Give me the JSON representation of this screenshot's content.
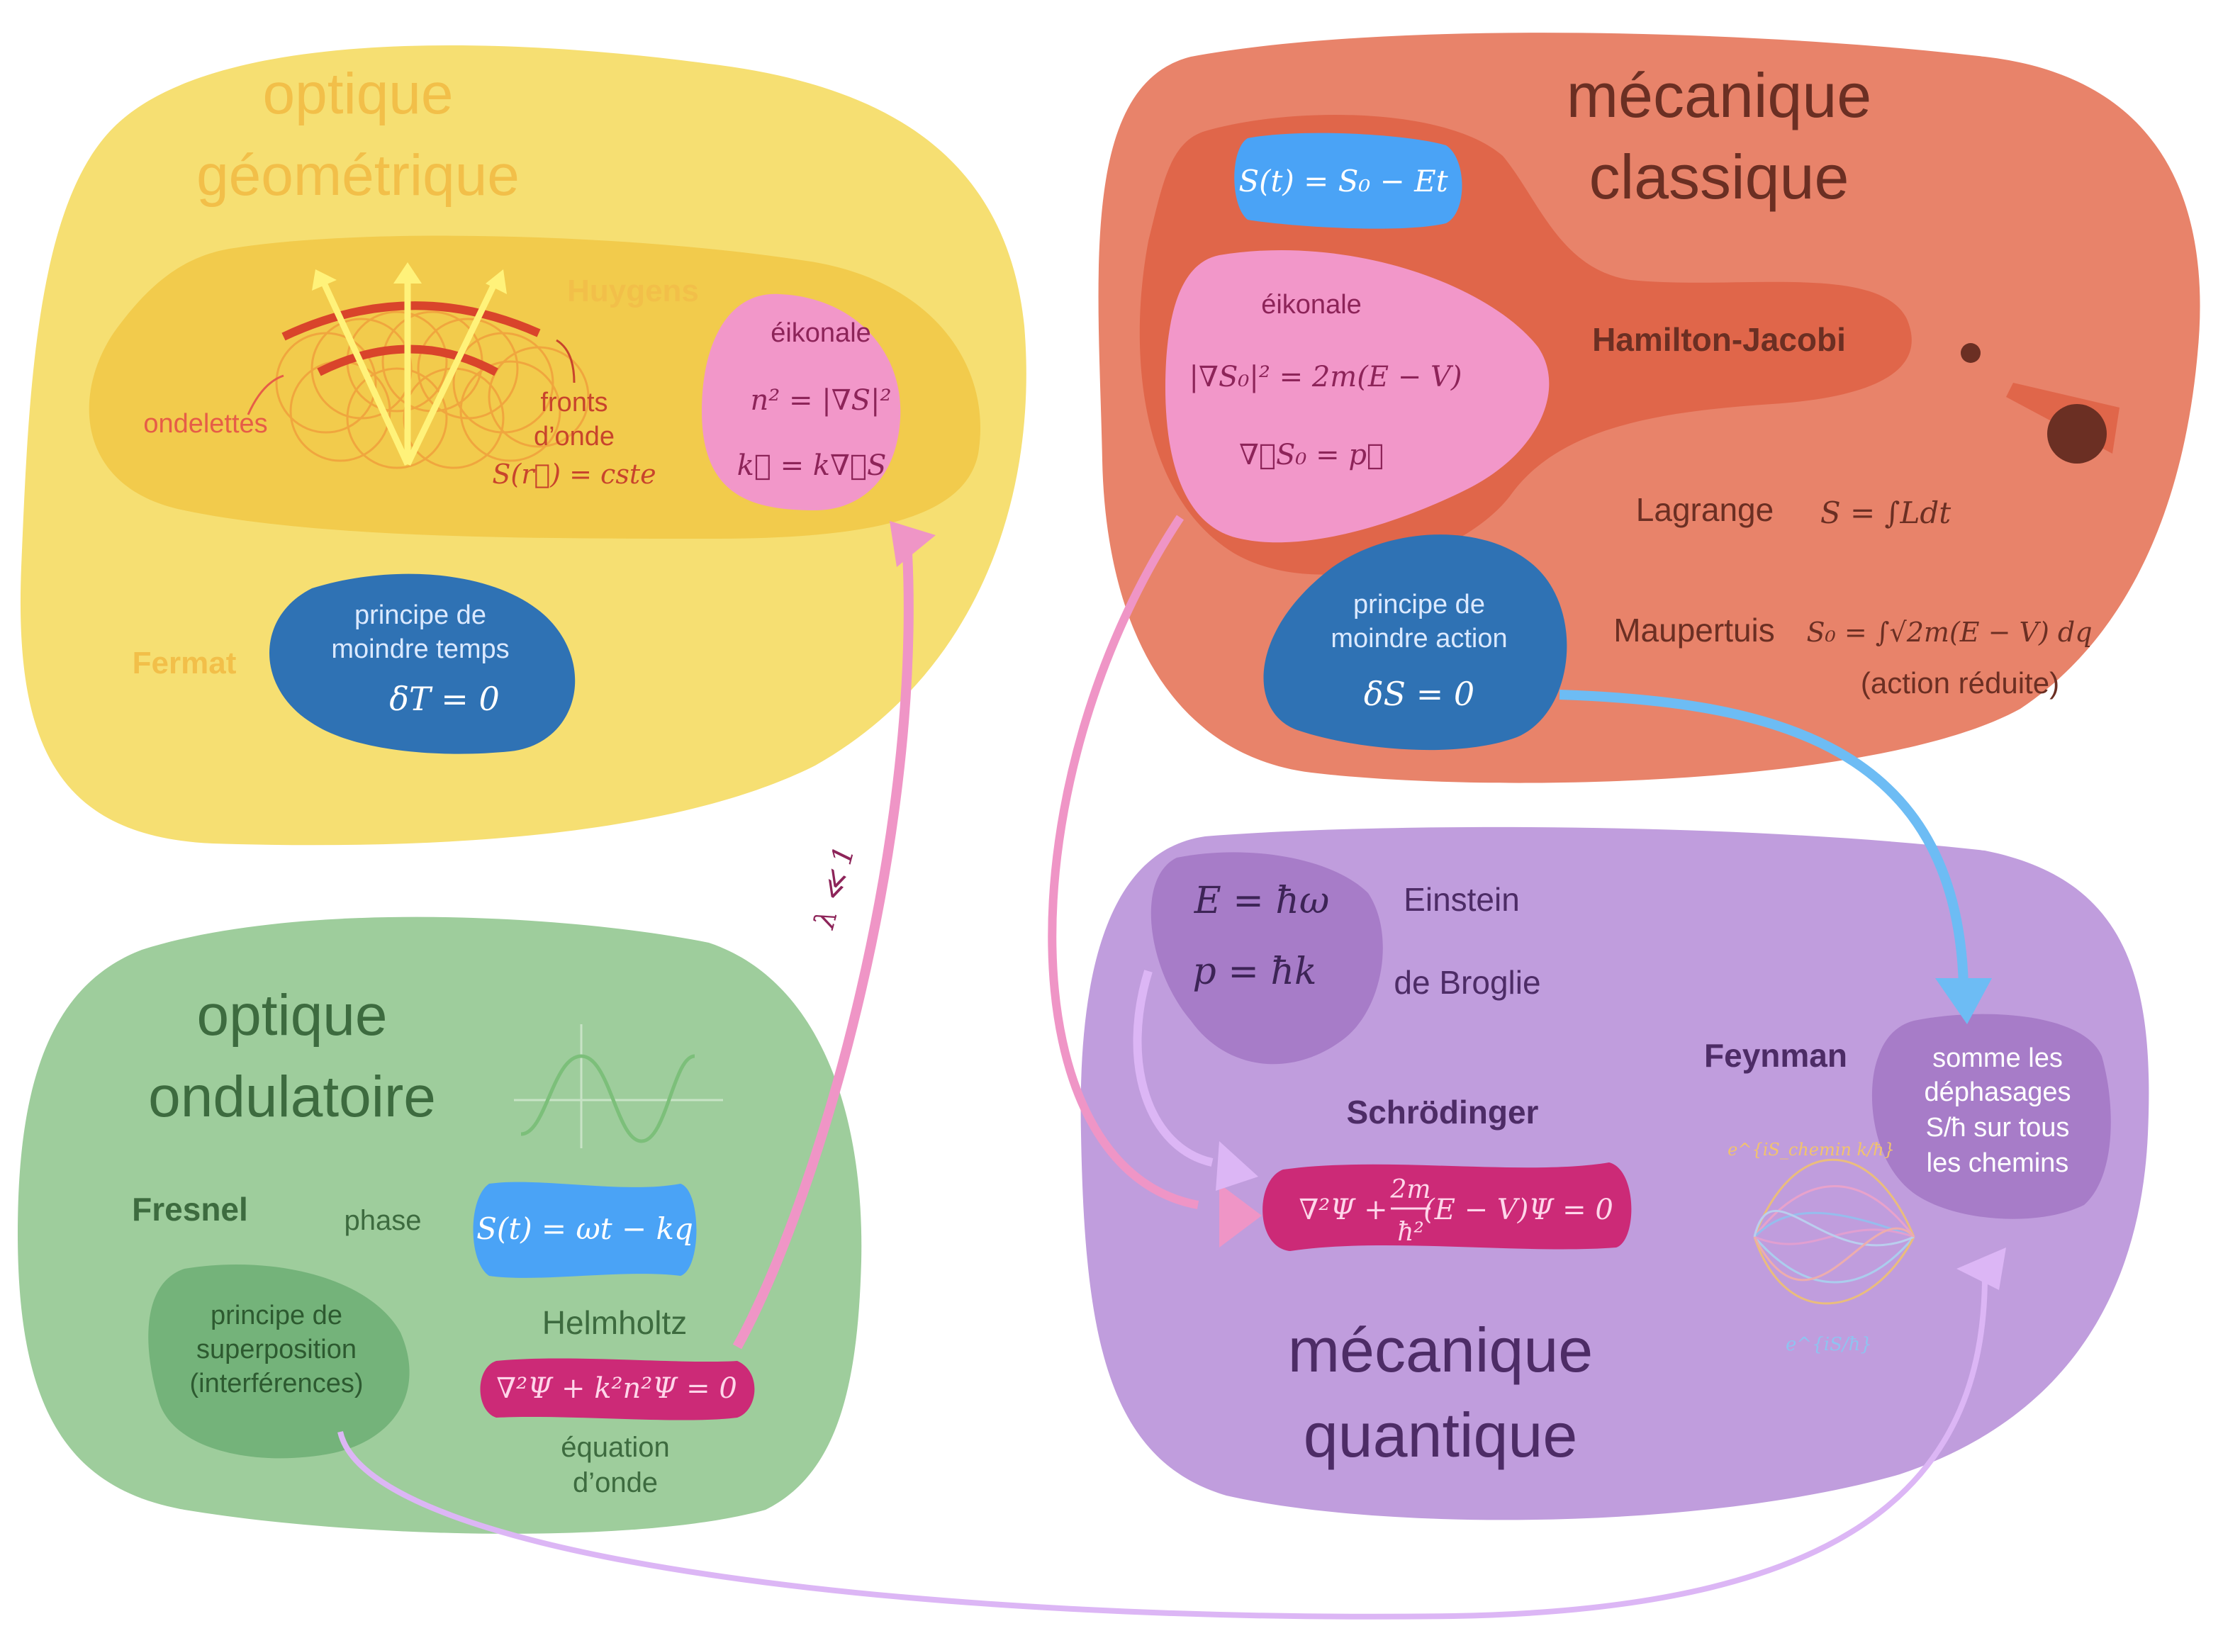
{
  "colors": {
    "geo_outer": "#f6df72",
    "geo_inner": "#f2cb4c",
    "geo_title": "#f2bf49",
    "classic_outer": "#e8836a",
    "classic_inner": "#e0664a",
    "classic_text": "#6b2f23",
    "wave_outer": "#9ecd9c",
    "wave_text": "#3d6b3f",
    "quantum_outer": "#c09ddd",
    "quantum_text": "#4d2c66",
    "pink_blob": "#f297c9",
    "pink_text": "#8d2459",
    "blue_blob": "#4aa3f6",
    "dark_blue_blob": "#2f72b4",
    "magenta_blob": "#cc2a77",
    "violet_blob": "#a77cc8",
    "pink_arrow": "#ef95c6",
    "blue_arrow": "#6dbcf4",
    "lavender_arrow": "#dcb6f5"
  },
  "geo": {
    "title_line1": "optique",
    "title_line2": "géométrique",
    "huygens": "Huygens",
    "ondelettes": "ondelettes",
    "fronts_line1": "fronts",
    "fronts_line2": "d’onde",
    "fronts_eq": "S(r⃗) = cste",
    "eikonale": "éikonale",
    "eik_eq1": "n² = |∇S|²",
    "eik_eq2": "k⃗ = k∇⃗S",
    "fermat": "Fermat",
    "fermat_line1": "principe de",
    "fermat_line2": "moindre temps",
    "fermat_eq": "δT = 0"
  },
  "classic": {
    "title_line1": "mécanique",
    "title_line2": "classique",
    "phase_eq": "S(t) = S₀ − Et",
    "eikonale": "éikonale",
    "eik_eq1": "|∇S₀|² = 2m(E − V)",
    "eik_eq2": "∇⃗S₀ = p⃗",
    "hamilton": "Hamilton-Jacobi",
    "lagrange": "Lagrange",
    "lagrange_eq": "S = ∫Ldt",
    "action_line1": "principe de",
    "action_line2": "moindre action",
    "action_eq": "δS = 0",
    "maupertuis": "Maupertuis",
    "maupertuis_eq": "S₀ = ∫√2m(E − V) dq",
    "reduced": "(action réduite)"
  },
  "wave": {
    "title_line1": "optique",
    "title_line2": "ondulatoire",
    "fresnel": "Fresnel",
    "phase": "phase",
    "phase_eq": "S(t) = ωt − kq",
    "super_line1": "principe de",
    "super_line2": "superposition",
    "super_line3": "(interférences)",
    "helmholtz": "Helmholtz",
    "helm_eq": "∇²Ψ + k²n²Ψ = 0",
    "wave_eq_line1": "équation",
    "wave_eq_line2": "d’onde"
  },
  "quantum": {
    "title_line1": "mécanique",
    "title_line2": "quantique",
    "einstein_eq": "E = ħω",
    "einstein": "Einstein",
    "broglie_eq": "p = ħk",
    "broglie": "de Broglie",
    "schrodinger": "Schrödinger",
    "schro_eq_left": "∇²Ψ +",
    "schro_frac_num": "2m",
    "schro_frac_den": "ħ²",
    "schro_eq_right": "(E − V)Ψ = 0",
    "feynman": "Feynman",
    "sum_line1": "somme les",
    "sum_line2": "déphasages",
    "sum_line3": "S/ħ sur tous",
    "sum_line4": "les chemins",
    "path_exp1": "e^{iS_chemin k/ħ}",
    "path_exp2": "e^{iS/ħ}"
  },
  "limit_label": "λ ≪ 1"
}
